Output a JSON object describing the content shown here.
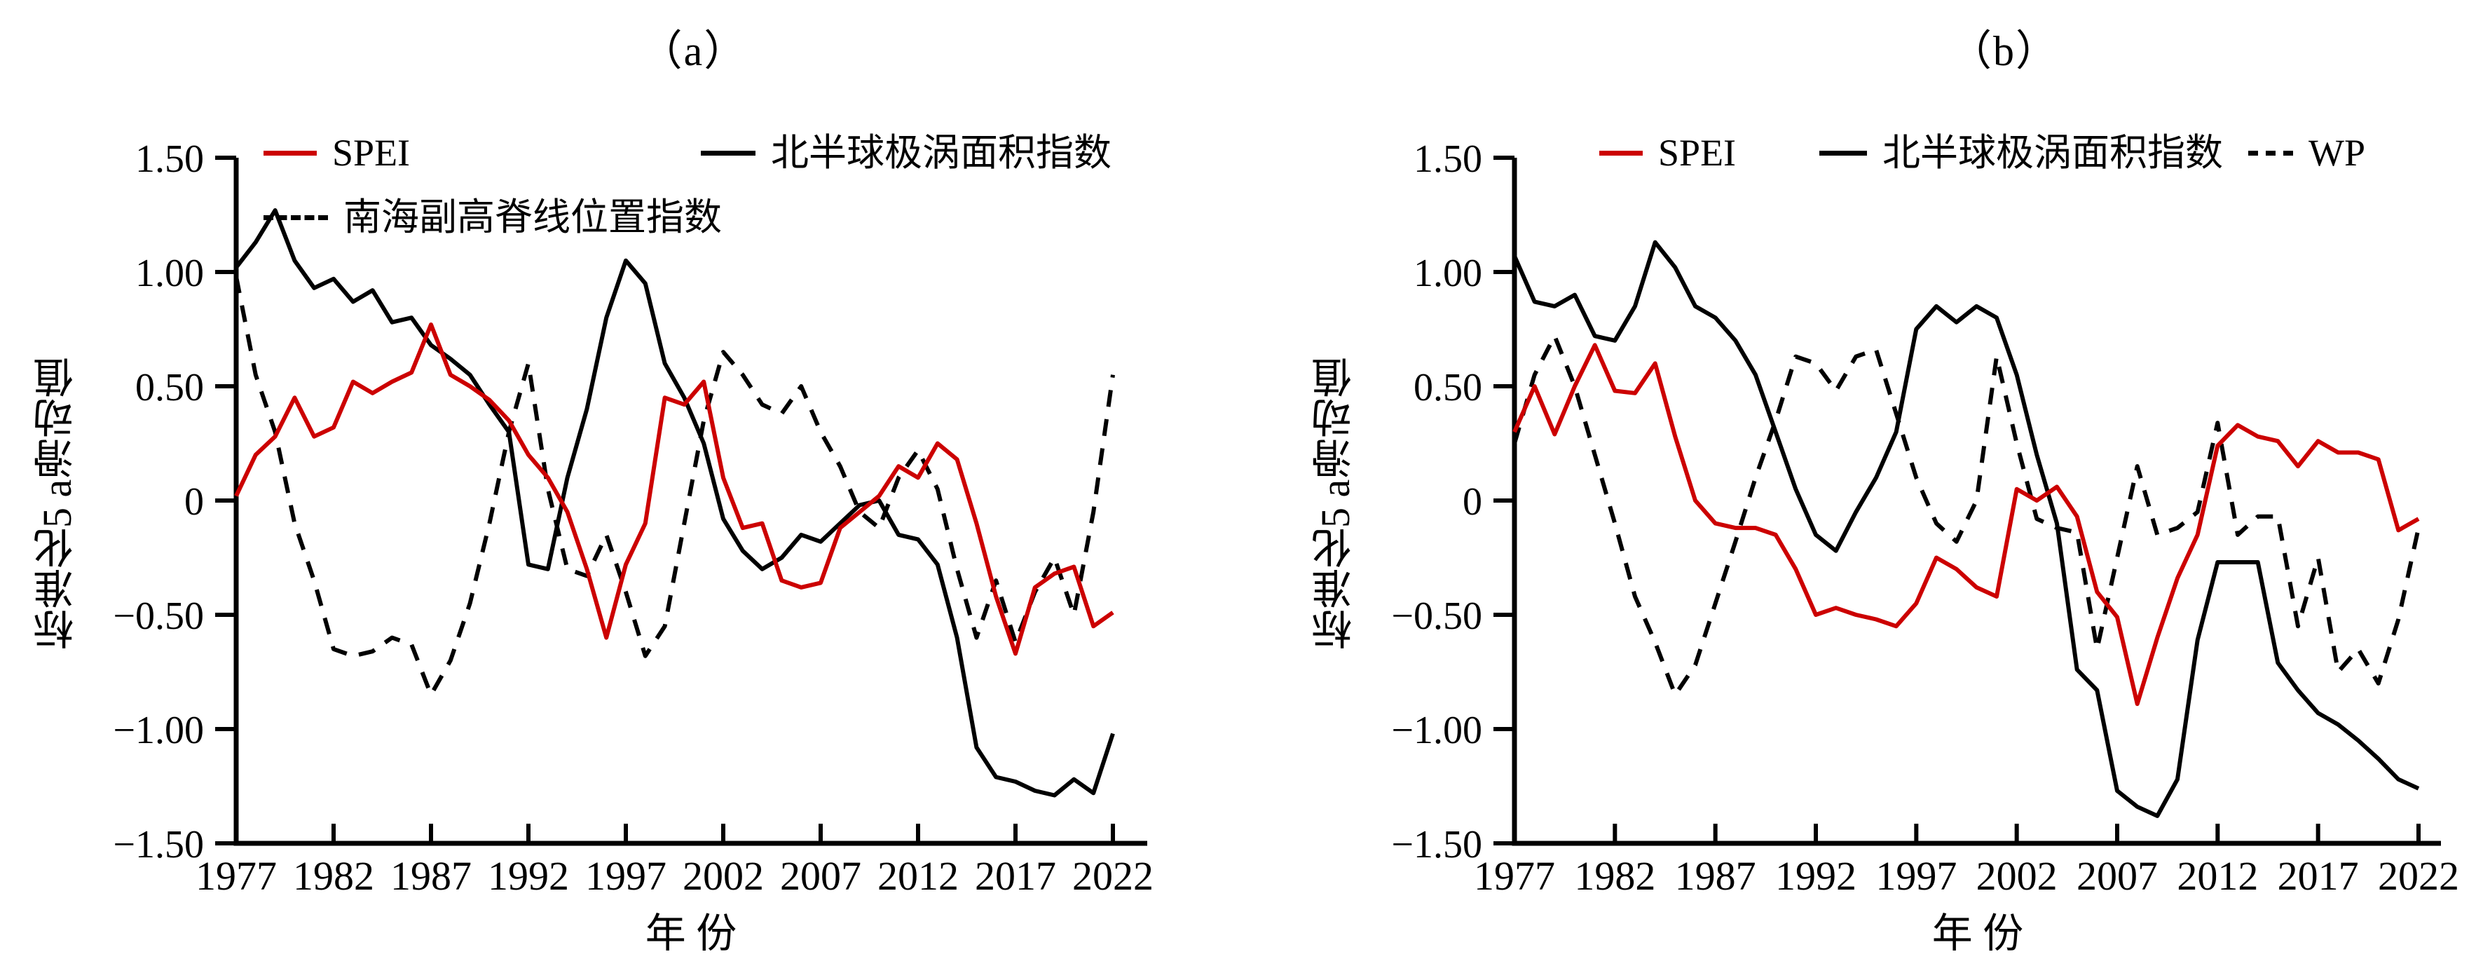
{
  "figure": {
    "panel_a_title": "（a）",
    "panel_b_title": "（b）",
    "x_axis_title": "年 份",
    "y_axis_title": "标准化5 a滑动值"
  },
  "colors": {
    "spei_red": "#cc0000",
    "index_black": "#000000",
    "background": "#ffffff"
  },
  "chart_data": [
    {
      "type": "line",
      "title": "（a）",
      "xlabel": "年 份",
      "ylabel": "标准化5 a滑动值",
      "xlim": [
        1977,
        2022
      ],
      "ylim": [
        -1.5,
        1.5
      ],
      "grid": false,
      "legend_position": "top-inside",
      "x_ticks": [
        "1977",
        "1982",
        "1987",
        "1992",
        "1997",
        "2002",
        "2007",
        "2012",
        "2017",
        "2022"
      ],
      "y_ticks": [
        "1.50",
        "1.00",
        "0.50",
        "0",
        "−0.50",
        "−1.00",
        "−1.50"
      ],
      "y_tick_values": [
        1.5,
        1.0,
        0.5,
        0,
        -0.5,
        -1.0,
        -1.5
      ],
      "years": [
        1977,
        1978,
        1979,
        1980,
        1981,
        1982,
        1983,
        1984,
        1985,
        1986,
        1987,
        1988,
        1989,
        1990,
        1991,
        1992,
        1993,
        1994,
        1995,
        1996,
        1997,
        1998,
        1999,
        2000,
        2001,
        2002,
        2003,
        2004,
        2005,
        2006,
        2007,
        2008,
        2009,
        2010,
        2011,
        2012,
        2013,
        2014,
        2015,
        2016,
        2017,
        2018,
        2019,
        2020,
        2021,
        2022
      ],
      "series": [
        {
          "name": "SPEI",
          "color": "#cc0000",
          "style": "solid",
          "values": [
            0.02,
            0.2,
            0.28,
            0.45,
            0.28,
            0.32,
            0.52,
            0.47,
            0.52,
            0.56,
            0.77,
            0.55,
            0.5,
            0.44,
            0.35,
            0.2,
            0.1,
            -0.05,
            -0.3,
            -0.6,
            -0.28,
            -0.1,
            0.45,
            0.42,
            0.52,
            0.1,
            -0.12,
            -0.1,
            -0.35,
            -0.38,
            -0.36,
            -0.12,
            -0.05,
            0.02,
            0.15,
            0.1,
            0.25,
            0.18,
            -0.1,
            -0.42,
            -0.67,
            -0.38,
            -0.32,
            -0.29,
            -0.55,
            -0.49
          ]
        },
        {
          "name": "北半球极涡面积指数",
          "color": "#000000",
          "style": "solid",
          "values": [
            1.02,
            1.13,
            1.27,
            1.05,
            0.93,
            0.97,
            0.87,
            0.92,
            0.78,
            0.8,
            0.68,
            0.62,
            0.55,
            0.42,
            0.3,
            -0.28,
            -0.3,
            0.1,
            0.4,
            0.8,
            1.05,
            0.95,
            0.6,
            0.45,
            0.25,
            -0.08,
            -0.22,
            -0.3,
            -0.25,
            -0.15,
            -0.18,
            -0.1,
            -0.02,
            0.0,
            -0.15,
            -0.17,
            -0.28,
            -0.6,
            -1.08,
            -1.21,
            -1.23,
            -1.27,
            -1.29,
            -1.22,
            -1.28,
            -1.02
          ]
        },
        {
          "name": "南海副高脊线位置指数",
          "color": "#000000",
          "style": "dashed",
          "values": [
            0.98,
            0.55,
            0.3,
            -0.1,
            -0.35,
            -0.65,
            -0.68,
            -0.66,
            -0.6,
            -0.63,
            -0.85,
            -0.7,
            -0.45,
            -0.1,
            0.3,
            0.6,
            0.05,
            -0.3,
            -0.33,
            -0.15,
            -0.4,
            -0.68,
            -0.55,
            -0.1,
            0.35,
            0.65,
            0.55,
            0.42,
            0.38,
            0.5,
            0.3,
            0.15,
            -0.05,
            -0.12,
            0.1,
            0.22,
            0.05,
            -0.3,
            -0.6,
            -0.35,
            -0.62,
            -0.4,
            -0.25,
            -0.5,
            -0.05,
            0.55
          ]
        }
      ]
    },
    {
      "type": "line",
      "title": "（b）",
      "xlabel": "年 份",
      "ylabel": "标准化5 a滑动值",
      "xlim": [
        1977,
        2022
      ],
      "ylim": [
        -1.5,
        1.5
      ],
      "grid": false,
      "legend_position": "top-inside",
      "x_ticks": [
        "1977",
        "1982",
        "1987",
        "1992",
        "1997",
        "2002",
        "2007",
        "2012",
        "2017",
        "2022"
      ],
      "y_ticks": [
        "1.50",
        "1.00",
        "0.50",
        "0",
        "−0.50",
        "−1.00",
        "−1.50"
      ],
      "y_tick_values": [
        1.5,
        1.0,
        0.5,
        0,
        -0.5,
        -1.0,
        -1.5
      ],
      "years": [
        1977,
        1978,
        1979,
        1980,
        1981,
        1982,
        1983,
        1984,
        1985,
        1986,
        1987,
        1988,
        1989,
        1990,
        1991,
        1992,
        1993,
        1994,
        1995,
        1996,
        1997,
        1998,
        1999,
        2000,
        2001,
        2002,
        2003,
        2004,
        2005,
        2006,
        2007,
        2008,
        2009,
        2010,
        2011,
        2012,
        2013,
        2014,
        2015,
        2016,
        2017,
        2018,
        2019,
        2020,
        2021,
        2022
      ],
      "series": [
        {
          "name": "SPEI",
          "color": "#cc0000",
          "style": "solid",
          "values": [
            0.3,
            0.5,
            0.29,
            0.5,
            0.68,
            0.48,
            0.47,
            0.6,
            0.28,
            0.0,
            -0.1,
            -0.12,
            -0.12,
            -0.15,
            -0.3,
            -0.5,
            -0.47,
            -0.5,
            -0.52,
            -0.55,
            -0.45,
            -0.25,
            -0.3,
            -0.38,
            -0.42,
            0.05,
            0.0,
            0.06,
            -0.07,
            -0.4,
            -0.51,
            -0.89,
            -0.6,
            -0.34,
            -0.15,
            0.24,
            0.33,
            0.28,
            0.26,
            0.15,
            0.26,
            0.21,
            0.21,
            0.18,
            -0.13,
            -0.08
          ]
        },
        {
          "name": "北半球极涡面积指数",
          "color": "#000000",
          "style": "solid",
          "values": [
            1.07,
            0.87,
            0.85,
            0.9,
            0.72,
            0.7,
            0.85,
            1.13,
            1.02,
            0.85,
            0.8,
            0.7,
            0.55,
            0.3,
            0.05,
            -0.15,
            -0.22,
            -0.05,
            0.1,
            0.3,
            0.75,
            0.85,
            0.78,
            0.85,
            0.8,
            0.55,
            0.2,
            -0.1,
            -0.74,
            -0.83,
            -1.27,
            -1.34,
            -1.38,
            -1.22,
            -0.61,
            -0.27,
            -0.27,
            -0.27,
            -0.71,
            -0.83,
            -0.93,
            -0.98,
            -1.05,
            -1.13,
            -1.22,
            -1.26
          ]
        },
        {
          "name": "WP",
          "color": "#000000",
          "style": "dashed",
          "values": [
            0.25,
            0.55,
            0.72,
            0.5,
            0.2,
            -0.1,
            -0.42,
            -0.62,
            -0.85,
            -0.72,
            -0.45,
            -0.18,
            0.1,
            0.35,
            0.63,
            0.6,
            0.48,
            0.63,
            0.66,
            0.38,
            0.1,
            -0.1,
            -0.18,
            0.0,
            0.63,
            0.25,
            -0.08,
            -0.12,
            -0.14,
            -0.65,
            -0.25,
            0.15,
            -0.15,
            -0.12,
            -0.05,
            0.34,
            -0.15,
            -0.07,
            -0.07,
            -0.55,
            -0.25,
            -0.75,
            -0.65,
            -0.8,
            -0.52,
            -0.12
          ]
        }
      ]
    }
  ]
}
